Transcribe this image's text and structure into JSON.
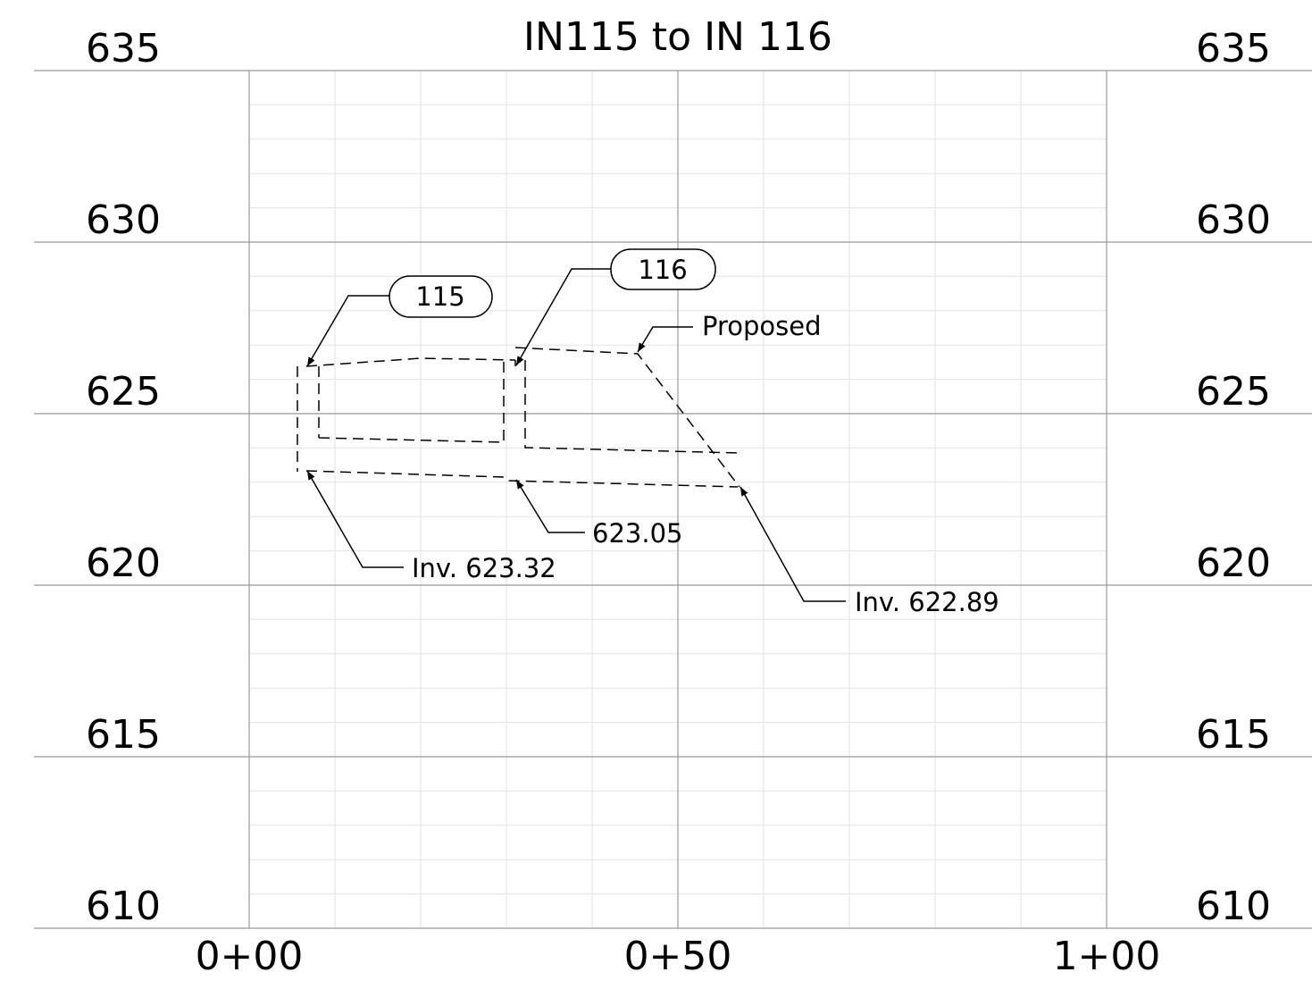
{
  "title": "IN115 to IN 116",
  "elevations": [
    "635",
    "630",
    "625",
    "620",
    "615",
    "610"
  ],
  "stations": [
    "0+00",
    "0+50",
    "1+00"
  ],
  "structures": [
    {
      "label": "115"
    },
    {
      "label": "116"
    }
  ],
  "annotations": {
    "proposed": "Proposed",
    "inv_115": "Inv. 623.32",
    "inv_116_in": "623.05",
    "inv_116_out": "Inv. 622.89"
  }
}
